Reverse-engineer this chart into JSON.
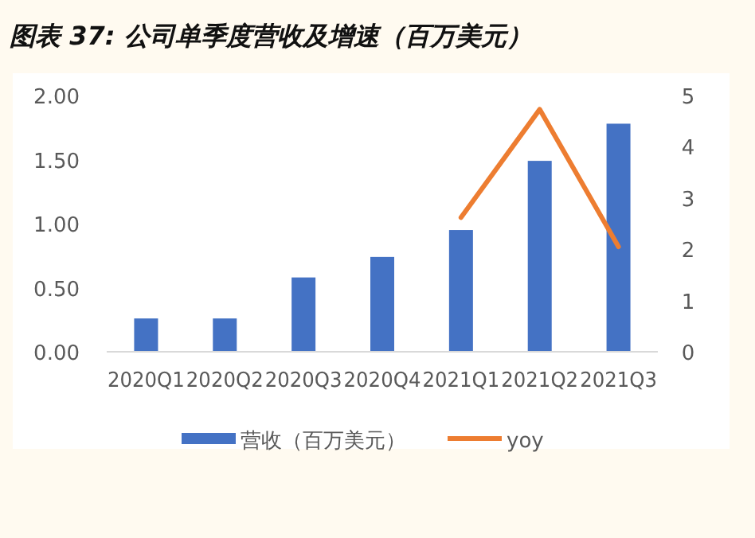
{
  "chart_data": {
    "type": "bar",
    "title": "图表 37: 公司单季度营收及增速（百万美元）",
    "categories": [
      "2020Q1",
      "2020Q2",
      "2020Q3",
      "2020Q4",
      "2021Q1",
      "2021Q2",
      "2021Q3"
    ],
    "series": [
      {
        "name": "营收（百万美元）",
        "color": "#4472c4",
        "values": [
          0.26,
          0.26,
          0.58,
          0.74,
          0.95,
          1.49,
          1.78
        ]
      },
      {
        "name": "yoy",
        "type": "line",
        "axis": "y2",
        "color": "#ed7d31",
        "values": [
          null,
          null,
          null,
          null,
          2.62,
          4.73,
          2.05
        ]
      }
    ],
    "ylim": [
      0,
      2
    ],
    "yticks": [
      {
        "value": 0,
        "label": "0.00"
      },
      {
        "value": 0.5,
        "label": "0.50"
      },
      {
        "value": 1,
        "label": "1.00"
      },
      {
        "value": 1.5,
        "label": "1.50"
      },
      {
        "value": 2,
        "label": "2.00"
      }
    ],
    "y2lim": [
      0,
      5
    ],
    "y2ticks": [
      0,
      1,
      2,
      3,
      4,
      5
    ],
    "legend": "bottom",
    "grid": false
  }
}
